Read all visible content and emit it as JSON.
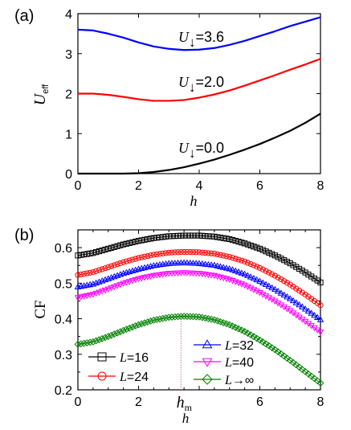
{
  "chart_data": [
    {
      "panel_label": "(a)",
      "type": "line",
      "xlabel": "h",
      "ylabel_main": "U",
      "ylabel_sub": "eff",
      "xlim": [
        0,
        8
      ],
      "ylim": [
        0,
        4
      ],
      "xticks": [
        "0",
        "2",
        "4",
        "6",
        "8"
      ],
      "yticks": [
        "0",
        "1",
        "2",
        "3",
        "4"
      ],
      "grid": false,
      "annotations": [
        {
          "symbol": "U",
          "subscript": "↓",
          "value": "=3.6"
        },
        {
          "symbol": "U",
          "subscript": "↓",
          "value": "=2.0"
        },
        {
          "symbol": "U",
          "subscript": "↓",
          "value": "=0.0"
        }
      ],
      "series": [
        {
          "color": "#0000ff",
          "x": [
            0,
            0.5,
            1,
            1.5,
            2,
            2.5,
            3,
            3.5,
            4,
            4.5,
            5,
            5.5,
            6,
            6.5,
            7,
            7.5,
            8
          ],
          "values": [
            3.6,
            3.58,
            3.5,
            3.4,
            3.28,
            3.18,
            3.12,
            3.09,
            3.1,
            3.14,
            3.22,
            3.32,
            3.44,
            3.56,
            3.69,
            3.8,
            3.91
          ]
        },
        {
          "color": "#ff0000",
          "x": [
            0,
            0.5,
            1,
            1.5,
            2,
            2.5,
            3,
            3.5,
            4,
            4.5,
            5,
            5.5,
            6,
            6.5,
            7,
            7.5,
            8
          ],
          "values": [
            2.0,
            2.0,
            1.97,
            1.92,
            1.86,
            1.82,
            1.82,
            1.84,
            1.9,
            1.98,
            2.08,
            2.2,
            2.33,
            2.46,
            2.6,
            2.73,
            2.87
          ]
        },
        {
          "color": "#000000",
          "x": [
            0,
            0.5,
            1,
            1.5,
            2,
            2.5,
            3,
            3.5,
            4,
            4.5,
            5,
            5.5,
            6,
            6.5,
            7,
            7.5,
            8
          ],
          "values": [
            0.0,
            0.0,
            0.0,
            0.0,
            0.01,
            0.04,
            0.09,
            0.16,
            0.25,
            0.35,
            0.47,
            0.6,
            0.74,
            0.9,
            1.07,
            1.27,
            1.5
          ]
        }
      ]
    },
    {
      "panel_label": "(b)",
      "type": "line",
      "xlabel": "h",
      "ylabel": "CF",
      "xlim": [
        0,
        8
      ],
      "ylim": [
        0.2,
        0.65
      ],
      "xticks": [
        "0",
        "2",
        "6",
        "8"
      ],
      "yticks": [
        "0.2",
        "0.3",
        "0.4",
        "0.5",
        "0.6"
      ],
      "hm_label": "h",
      "hm_sub": "m",
      "hm_x": 3.4,
      "grid": false,
      "legend_placement": "bottom",
      "series": [
        {
          "name_symbol": "L",
          "name_value": "=16",
          "color": "#000000",
          "marker": "square",
          "x": [
            0,
            0.5,
            1,
            1.5,
            2,
            2.5,
            3,
            3.5,
            4,
            4.5,
            5,
            5.5,
            6,
            6.5,
            7,
            7.5,
            8
          ],
          "values": [
            0.578,
            0.585,
            0.597,
            0.609,
            0.619,
            0.627,
            0.632,
            0.634,
            0.634,
            0.631,
            0.624,
            0.612,
            0.597,
            0.578,
            0.556,
            0.53,
            0.502
          ]
        },
        {
          "name_symbol": "L",
          "name_value": "=24",
          "color": "#ff0000",
          "marker": "circle",
          "x": [
            0,
            0.5,
            1,
            1.5,
            2,
            2.5,
            3,
            3.5,
            4,
            4.5,
            5,
            5.5,
            6,
            6.5,
            7,
            7.5,
            8
          ],
          "values": [
            0.523,
            0.531,
            0.545,
            0.559,
            0.571,
            0.58,
            0.586,
            0.588,
            0.587,
            0.583,
            0.574,
            0.561,
            0.543,
            0.521,
            0.496,
            0.468,
            0.438
          ]
        },
        {
          "name_symbol": "L",
          "name_value": "=32",
          "color": "#0000ff",
          "marker": "triangle-up",
          "x": [
            0,
            0.5,
            1,
            1.5,
            2,
            2.5,
            3,
            3.5,
            4,
            4.5,
            5,
            5.5,
            6,
            6.5,
            7,
            7.5,
            8
          ],
          "values": [
            0.489,
            0.497,
            0.512,
            0.527,
            0.539,
            0.549,
            0.555,
            0.557,
            0.555,
            0.55,
            0.54,
            0.525,
            0.505,
            0.482,
            0.456,
            0.427,
            0.397
          ]
        },
        {
          "name_symbol": "L",
          "name_value": "=40",
          "color": "#ff00ff",
          "marker": "triangle-down",
          "x": [
            0,
            0.5,
            1,
            1.5,
            2,
            2.5,
            3,
            3.5,
            4,
            4.5,
            5,
            5.5,
            6,
            6.5,
            7,
            7.5,
            8
          ],
          "values": [
            0.46,
            0.469,
            0.484,
            0.5,
            0.513,
            0.522,
            0.528,
            0.53,
            0.528,
            0.522,
            0.511,
            0.495,
            0.474,
            0.45,
            0.423,
            0.393,
            0.363
          ]
        },
        {
          "name_symbol": "L",
          "name_value": "→∞",
          "color": "#008000",
          "marker": "diamond",
          "x": [
            0,
            0.5,
            1,
            1.5,
            2,
            2.5,
            3,
            3.5,
            4,
            4.5,
            5,
            5.5,
            6,
            6.5,
            7,
            7.5,
            8
          ],
          "values": [
            0.328,
            0.335,
            0.35,
            0.367,
            0.383,
            0.396,
            0.404,
            0.407,
            0.405,
            0.397,
            0.383,
            0.364,
            0.34,
            0.313,
            0.283,
            0.251,
            0.219
          ]
        }
      ]
    }
  ]
}
